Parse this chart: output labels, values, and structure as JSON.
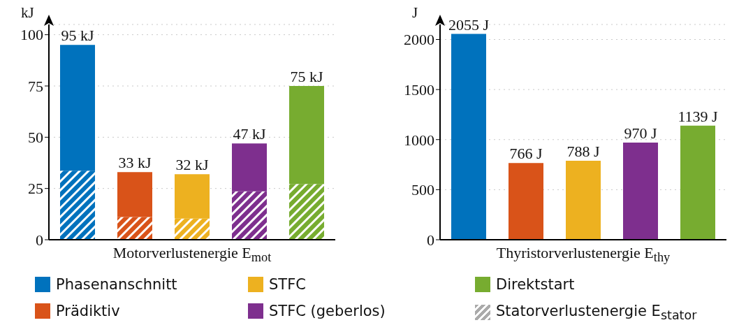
{
  "chart_data": [
    {
      "type": "bar",
      "stacked": true,
      "xlabel": "Motorverlustenergie E$_{mot}$",
      "ylabel": "kJ",
      "categories": [
        null,
        null,
        null,
        null,
        null
      ],
      "series": [
        {
          "name": "Statorverlustenergie E$_{stator}$",
          "color": "#aaaaaa",
          "colors": [
            "#0072bd",
            "#d95319",
            "#edb120",
            "#7e2f8e",
            "#77ac30"
          ],
          "values": [
            33.7,
            11.1,
            10.3,
            23.6,
            27.2
          ]
        },
        {
          "name": "Phasenanschnitt",
          "color": "#0072bd",
          "values": [
            61.3,
            null,
            null,
            null,
            null
          ]
        },
        {
          "name": "Prädiktiv",
          "color": "#d95319",
          "values": [
            null,
            21.9,
            null,
            null,
            null
          ]
        },
        {
          "name": "STFC",
          "color": "#edb120",
          "values": [
            null,
            null,
            21.7,
            null,
            null
          ]
        },
        {
          "name": "STFC (geberlos)",
          "color": "#7e2f8e",
          "values": [
            null,
            null,
            null,
            23.4,
            null
          ]
        },
        {
          "name": "Direktstart",
          "color": "#77ac30",
          "values": [
            null,
            null,
            null,
            null,
            47.8
          ]
        }
      ],
      "totals": [
        "95 kJ",
        "33 kJ",
        "32 kJ",
        "47 kJ",
        "75 kJ"
      ],
      "ylim": [
        0,
        105
      ],
      "yticks": [
        0,
        25,
        50,
        75,
        100
      ],
      "grid": "y",
      "tick_labels": "y",
      "legend": "bottom"
    },
    {
      "type": "bar",
      "xlabel": "Thyristorverlustenergie E$_{thy}$",
      "ylabel": "J",
      "categories": [
        null,
        null,
        null,
        null,
        null
      ],
      "colors": [
        "#0072bd",
        "#d95319",
        "#edb120",
        "#7e2f8e",
        "#77ac30"
      ],
      "values": [
        2055,
        766,
        788,
        970,
        1139
      ],
      "value_labels": [
        "2055 J",
        "766 J",
        "788 J",
        "970 J",
        "1139 J"
      ],
      "ylim": [
        0,
        2150
      ],
      "yticks": [
        0,
        500,
        1000,
        1500,
        2000
      ],
      "grid": "y",
      "tick_labels": "y"
    }
  ]
}
